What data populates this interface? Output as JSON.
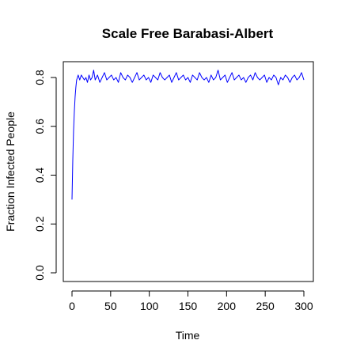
{
  "chart_data": {
    "type": "line",
    "title": "Scale Free Barabasi-Albert",
    "xlabel": "Time",
    "ylabel": "Fraction Infected People",
    "xlim": [
      0,
      300
    ],
    "ylim": [
      0,
      0.8
    ],
    "xticks": [
      0,
      50,
      100,
      150,
      200,
      250,
      300
    ],
    "yticks": [
      0.0,
      0.2,
      0.4,
      0.6,
      0.8
    ],
    "xtick_labels": [
      "0",
      "50",
      "100",
      "150",
      "200",
      "250",
      "300"
    ],
    "ytick_labels": [
      "0.0",
      "0.2",
      "0.4",
      "0.6",
      "0.8"
    ],
    "grid": false,
    "line_color": "#0000ff",
    "series": [
      {
        "x": [
          0,
          1,
          2,
          3,
          4,
          5,
          6,
          7,
          8,
          9,
          10,
          12,
          14,
          16,
          18,
          20,
          22,
          24,
          26,
          28,
          30,
          33,
          36,
          39,
          42,
          45,
          48,
          51,
          54,
          57,
          60,
          63,
          66,
          69,
          72,
          75,
          78,
          81,
          84,
          87,
          90,
          93,
          96,
          99,
          102,
          105,
          108,
          111,
          114,
          117,
          120,
          123,
          126,
          129,
          132,
          135,
          138,
          141,
          144,
          147,
          150,
          153,
          156,
          159,
          162,
          165,
          168,
          171,
          174,
          177,
          180,
          183,
          186,
          189,
          192,
          195,
          198,
          201,
          204,
          207,
          210,
          213,
          216,
          219,
          222,
          225,
          228,
          231,
          234,
          237,
          240,
          243,
          246,
          249,
          252,
          255,
          258,
          261,
          264,
          267,
          270,
          273,
          276,
          279,
          282,
          285,
          288,
          291,
          294,
          297,
          300
        ],
        "y": [
          0.3,
          0.46,
          0.58,
          0.66,
          0.72,
          0.76,
          0.79,
          0.8,
          0.81,
          0.8,
          0.79,
          0.81,
          0.8,
          0.79,
          0.8,
          0.78,
          0.81,
          0.79,
          0.8,
          0.83,
          0.79,
          0.81,
          0.78,
          0.8,
          0.82,
          0.79,
          0.8,
          0.81,
          0.79,
          0.8,
          0.78,
          0.82,
          0.8,
          0.79,
          0.81,
          0.8,
          0.78,
          0.8,
          0.82,
          0.79,
          0.8,
          0.81,
          0.79,
          0.8,
          0.78,
          0.81,
          0.8,
          0.79,
          0.82,
          0.8,
          0.79,
          0.8,
          0.81,
          0.78,
          0.8,
          0.82,
          0.79,
          0.8,
          0.81,
          0.79,
          0.8,
          0.78,
          0.81,
          0.8,
          0.79,
          0.82,
          0.8,
          0.79,
          0.8,
          0.78,
          0.81,
          0.79,
          0.8,
          0.83,
          0.79,
          0.8,
          0.81,
          0.78,
          0.8,
          0.82,
          0.79,
          0.8,
          0.81,
          0.79,
          0.8,
          0.78,
          0.8,
          0.81,
          0.79,
          0.82,
          0.8,
          0.79,
          0.8,
          0.81,
          0.78,
          0.8,
          0.79,
          0.81,
          0.8,
          0.77,
          0.8,
          0.79,
          0.81,
          0.8,
          0.78,
          0.8,
          0.81,
          0.79,
          0.8,
          0.82,
          0.79
        ]
      }
    ]
  }
}
